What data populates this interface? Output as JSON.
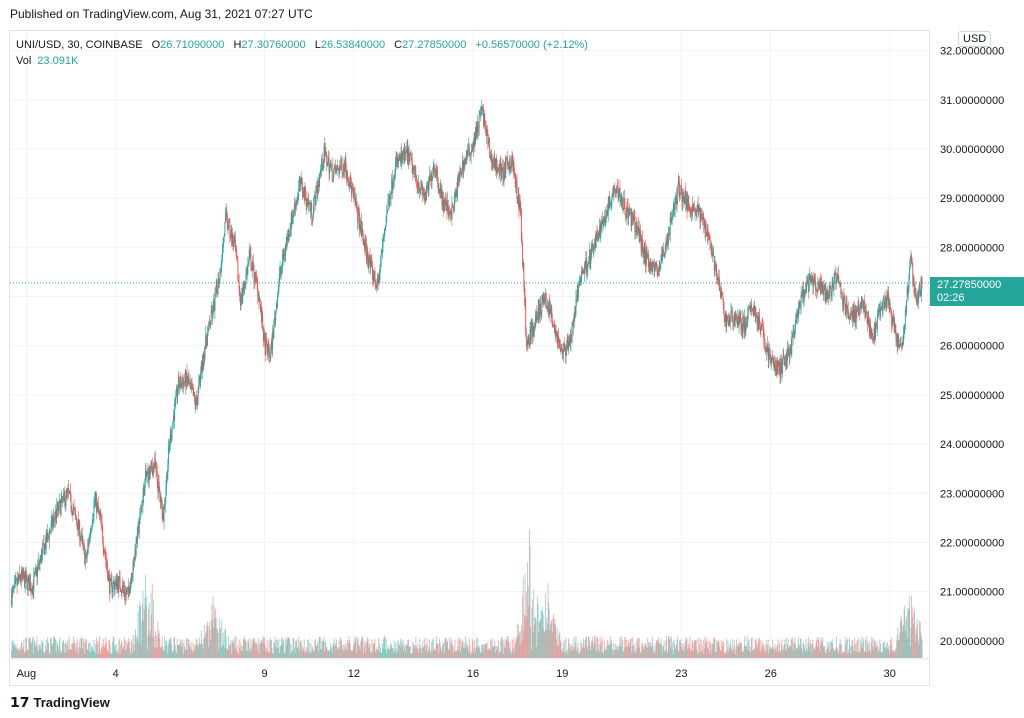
{
  "published": "Published on TradingView.com, Aug 31, 2021 07:27 UTC",
  "legend": {
    "symbol": "UNI/USD, 30, COINBASE",
    "o_label": "O",
    "o": "26.71090000",
    "h_label": "H",
    "h": "27.30760000",
    "l_label": "L",
    "l": "26.53840000",
    "c_label": "C",
    "c": "27.27850000",
    "change": "+0.56570000 (+2.12%)",
    "vol_label": "Vol",
    "vol": "23.091K"
  },
  "currency": "USD",
  "last_price": "27.27850000",
  "countdown": "02:26",
  "brand": "TradingView",
  "colors": {
    "up": "#26a69a",
    "down": "#ef5350",
    "grid": "#f0f3fa"
  },
  "chart_data": {
    "type": "candlestick",
    "symbol": "UNI/USD",
    "interval": "30",
    "exchange": "COINBASE",
    "y_ticks": [
      20,
      21,
      22,
      23,
      24,
      25,
      26,
      27,
      28,
      29,
      30,
      31,
      32
    ],
    "y_tick_labels": [
      "20.00000000",
      "21.00000000",
      "22.00000000",
      "23.00000000",
      "24.00000000",
      "25.00000000",
      "26.00000000",
      "27.00000000",
      "28.00000000",
      "29.00000000",
      "30.00000000",
      "31.00000000",
      "32.00000000"
    ],
    "ylim": [
      19.65,
      32.4
    ],
    "x_tick_labels": [
      "Aug",
      "4",
      "9",
      "12",
      "16",
      "19",
      "23",
      "26",
      "30"
    ],
    "x_tick_days": [
      1,
      4,
      9,
      12,
      16,
      19,
      23,
      26,
      30
    ],
    "xlim_days": [
      0.45,
      31.35
    ],
    "last_value": 27.2785,
    "close_path": [
      [
        0.5,
        20.9
      ],
      [
        0.8,
        21.3
      ],
      [
        1.2,
        21.1
      ],
      [
        1.6,
        21.9
      ],
      [
        2.0,
        22.6
      ],
      [
        2.4,
        23.0
      ],
      [
        2.8,
        22.2
      ],
      [
        3.0,
        21.6
      ],
      [
        3.3,
        22.9
      ],
      [
        3.5,
        22.4
      ],
      [
        3.8,
        21.1
      ],
      [
        4.1,
        21.2
      ],
      [
        4.4,
        20.9
      ],
      [
        4.7,
        22.0
      ],
      [
        5.0,
        23.3
      ],
      [
        5.3,
        23.6
      ],
      [
        5.6,
        22.5
      ],
      [
        5.8,
        24.0
      ],
      [
        6.1,
        25.2
      ],
      [
        6.4,
        25.3
      ],
      [
        6.7,
        24.8
      ],
      [
        7.0,
        26.0
      ],
      [
        7.3,
        26.8
      ],
      [
        7.5,
        27.5
      ],
      [
        7.7,
        28.6
      ],
      [
        8.0,
        28.0
      ],
      [
        8.2,
        26.9
      ],
      [
        8.5,
        27.8
      ],
      [
        8.8,
        27.1
      ],
      [
        9.0,
        26.0
      ],
      [
        9.2,
        25.8
      ],
      [
        9.5,
        27.4
      ],
      [
        9.8,
        28.3
      ],
      [
        10.2,
        29.3
      ],
      [
        10.6,
        28.7
      ],
      [
        11.0,
        29.9
      ],
      [
        11.3,
        29.5
      ],
      [
        11.7,
        29.7
      ],
      [
        12.0,
        29.0
      ],
      [
        12.3,
        28.2
      ],
      [
        12.6,
        27.5
      ],
      [
        12.8,
        27.2
      ],
      [
        13.1,
        28.7
      ],
      [
        13.4,
        29.7
      ],
      [
        13.8,
        29.9
      ],
      [
        14.1,
        29.4
      ],
      [
        14.4,
        29.0
      ],
      [
        14.7,
        29.7
      ],
      [
        15.0,
        28.9
      ],
      [
        15.3,
        28.7
      ],
      [
        15.6,
        29.6
      ],
      [
        16.0,
        30.1
      ],
      [
        16.3,
        30.8
      ],
      [
        16.6,
        29.8
      ],
      [
        17.0,
        29.5
      ],
      [
        17.3,
        29.8
      ],
      [
        17.6,
        28.7
      ],
      [
        17.8,
        26.0
      ],
      [
        18.1,
        26.5
      ],
      [
        18.4,
        27.0
      ],
      [
        18.7,
        26.5
      ],
      [
        19.0,
        25.8
      ],
      [
        19.3,
        26.2
      ],
      [
        19.6,
        27.4
      ],
      [
        20.0,
        27.9
      ],
      [
        20.4,
        28.6
      ],
      [
        20.8,
        29.3
      ],
      [
        21.1,
        28.8
      ],
      [
        21.5,
        28.4
      ],
      [
        21.8,
        27.8
      ],
      [
        22.2,
        27.5
      ],
      [
        22.5,
        28.1
      ],
      [
        22.9,
        29.2
      ],
      [
        23.2,
        28.9
      ],
      [
        23.6,
        28.7
      ],
      [
        23.9,
        28.3
      ],
      [
        24.2,
        27.4
      ],
      [
        24.5,
        26.5
      ],
      [
        24.8,
        26.6
      ],
      [
        25.1,
        26.4
      ],
      [
        25.4,
        26.8
      ],
      [
        25.7,
        26.3
      ],
      [
        26.0,
        25.7
      ],
      [
        26.3,
        25.5
      ],
      [
        26.7,
        26.0
      ],
      [
        27.0,
        26.9
      ],
      [
        27.3,
        27.3
      ],
      [
        27.6,
        27.2
      ],
      [
        27.9,
        27.0
      ],
      [
        28.2,
        27.4
      ],
      [
        28.5,
        26.8
      ],
      [
        28.8,
        26.6
      ],
      [
        29.1,
        26.9
      ],
      [
        29.4,
        26.1
      ],
      [
        29.7,
        26.7
      ],
      [
        29.9,
        27.0
      ],
      [
        30.2,
        26.2
      ],
      [
        30.4,
        25.9
      ],
      [
        30.7,
        27.7
      ],
      [
        30.9,
        26.9
      ],
      [
        31.1,
        27.2785
      ]
    ],
    "volume_spikes": [
      [
        5.05,
        0.85
      ],
      [
        17.9,
        1.0
      ],
      [
        30.7,
        0.6
      ],
      [
        7.3,
        0.45
      ],
      [
        18.5,
        0.6
      ]
    ]
  }
}
